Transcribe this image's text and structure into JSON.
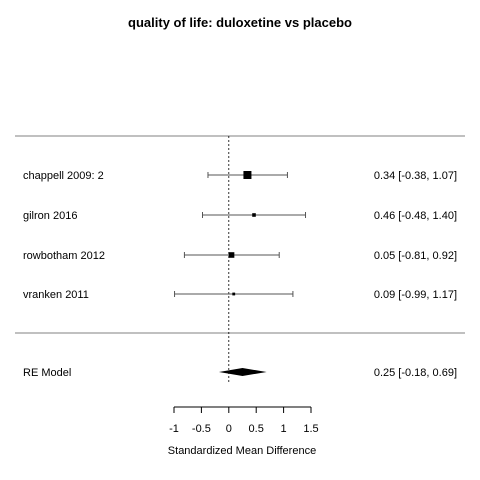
{
  "chart_data": {
    "type": "forest",
    "title": "quality of life: duloxetine vs placebo",
    "xlabel": "Standardized Mean Difference",
    "xlim": [
      -1,
      1.5
    ],
    "ticks": [
      -1,
      -0.5,
      0,
      0.5,
      1,
      1.5
    ],
    "tick_labels": [
      "-1",
      "-0.5",
      "0",
      "0.5",
      "1",
      "1.5"
    ],
    "reference_line": 0,
    "studies": [
      {
        "label": "chappell 2009: 2",
        "estimate": 0.34,
        "lower": -0.38,
        "upper": 1.07,
        "ci_text": "0.34 [-0.38, 1.07]",
        "weight": 1.0
      },
      {
        "label": "gilron 2016",
        "estimate": 0.46,
        "lower": -0.48,
        "upper": 1.4,
        "ci_text": "0.46 [-0.48, 1.40]",
        "weight": 0.45
      },
      {
        "label": "rowbotham 2012",
        "estimate": 0.05,
        "lower": -0.81,
        "upper": 0.92,
        "ci_text": "0.05 [-0.81, 0.92]",
        "weight": 0.7
      },
      {
        "label": "vranken 2011",
        "estimate": 0.09,
        "lower": -0.99,
        "upper": 1.17,
        "ci_text": "0.09 [-0.99, 1.17]",
        "weight": 0.35
      }
    ],
    "summary": {
      "label": "RE Model",
      "estimate": 0.25,
      "lower": -0.18,
      "upper": 0.69,
      "ci_text": "0.25 [-0.18, 0.69]"
    }
  }
}
